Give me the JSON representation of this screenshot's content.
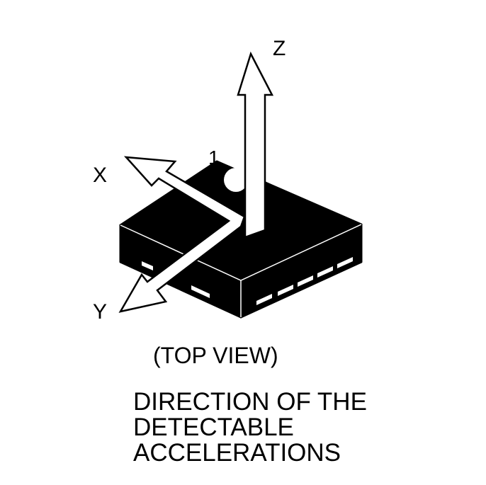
{
  "colors": {
    "ink": "#000000",
    "paper": "#ffffff"
  },
  "axes": {
    "x": "X",
    "y": "Y",
    "z": "Z"
  },
  "pin_marker": "1",
  "view_caption": "(TOP VIEW)",
  "direction_caption": [
    "DIRECTION OF THE",
    "DETECTABLE",
    "ACCELERATIONS"
  ]
}
